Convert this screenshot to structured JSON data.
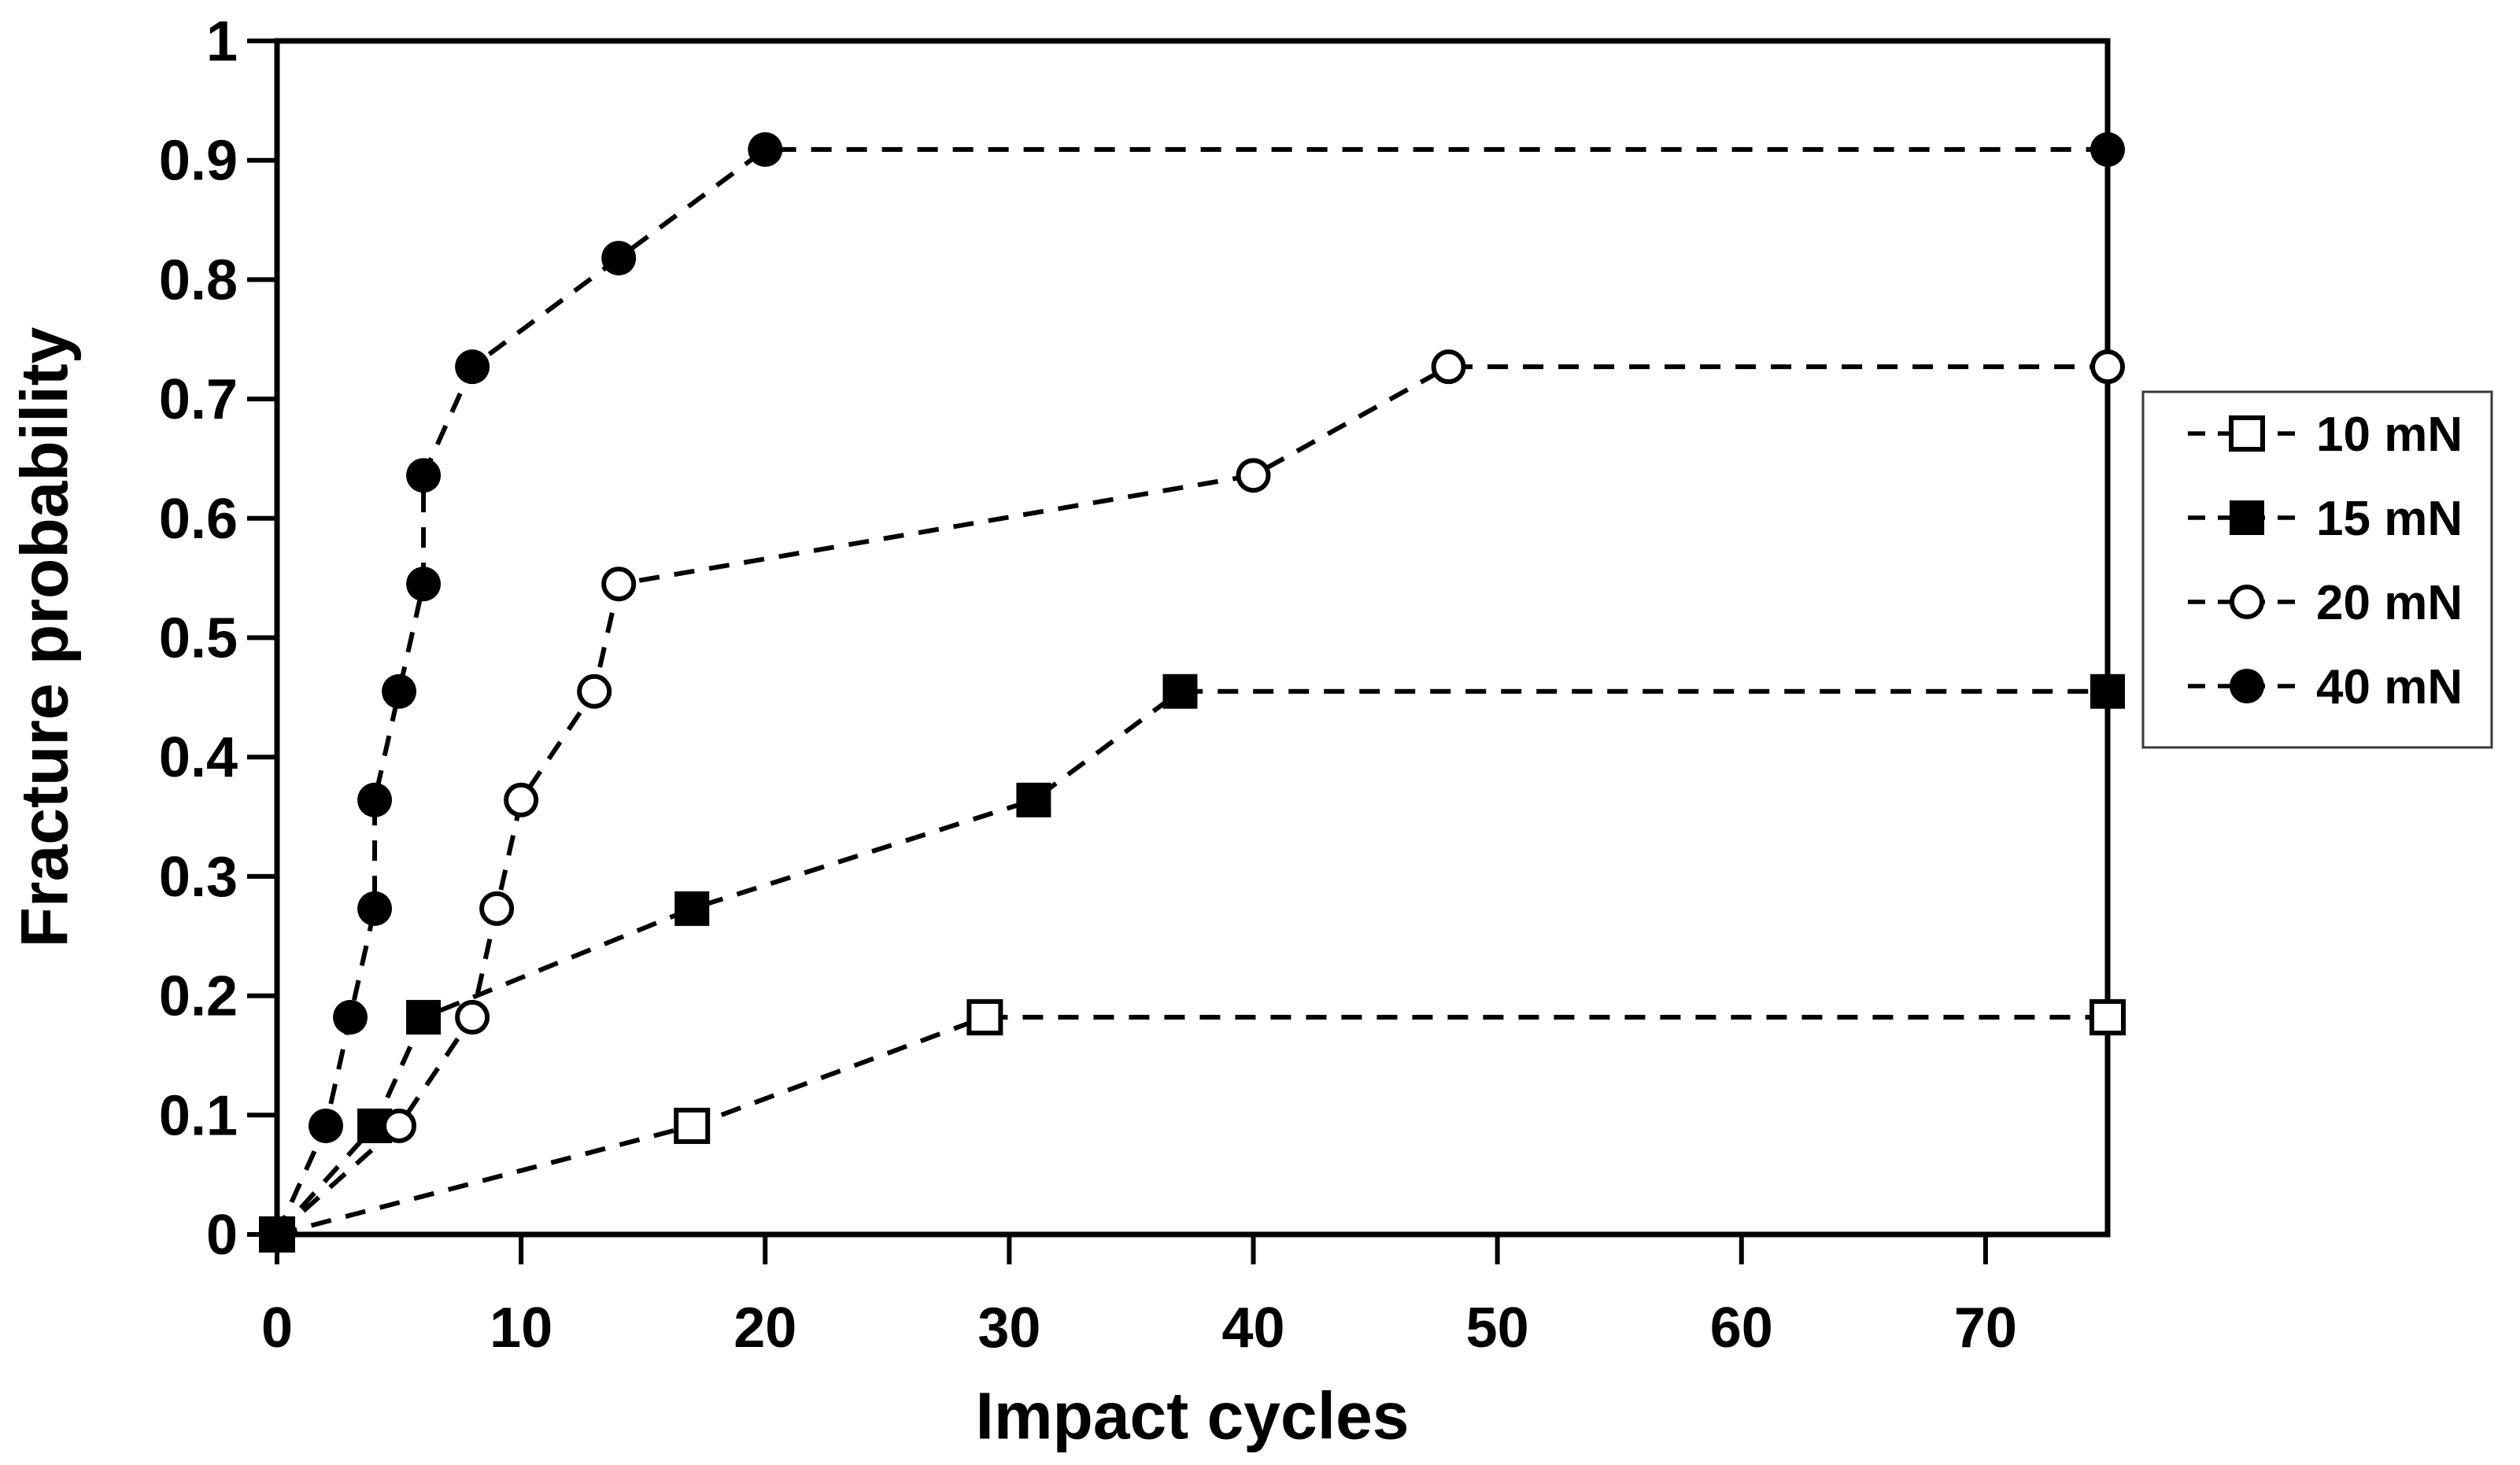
{
  "figure": {
    "background_color": "#ffffff",
    "line_color": "#000000",
    "text_color": "#000000"
  },
  "chart_data": {
    "type": "line",
    "title": "",
    "xlabel": "Impact cycles",
    "ylabel": "Fracture probability",
    "xlim": [
      0,
      75
    ],
    "ylim": [
      0,
      1
    ],
    "xticks": [
      0,
      10,
      20,
      30,
      40,
      50,
      60,
      70
    ],
    "xtick_labels": [
      "0",
      "10",
      "20",
      "30",
      "40",
      "50",
      "60",
      "70"
    ],
    "yticks": [
      0,
      0.1,
      0.2,
      0.3,
      0.4,
      0.5,
      0.6,
      0.7,
      0.8,
      0.9,
      1
    ],
    "ytick_labels": [
      "0",
      "0.1",
      "0.2",
      "0.3",
      "0.4",
      "0.5",
      "0.6",
      "0.7",
      "0.8",
      "0.9",
      "1"
    ],
    "grid": false,
    "line_style": "dashed",
    "legend_position": "right-outside",
    "legend_border_color": "#3a3a3a",
    "series": [
      {
        "name": "10 mN",
        "marker": "open-square",
        "points": [
          [
            0,
            0
          ],
          [
            17,
            0.091
          ],
          [
            29,
            0.182
          ],
          [
            75,
            0.182
          ]
        ]
      },
      {
        "name": "15 mN",
        "marker": "filled-square",
        "points": [
          [
            0,
            0
          ],
          [
            4,
            0.091
          ],
          [
            6,
            0.182
          ],
          [
            17,
            0.273
          ],
          [
            31,
            0.364
          ],
          [
            37,
            0.455
          ],
          [
            75,
            0.455
          ]
        ]
      },
      {
        "name": "20 mN",
        "marker": "open-circle",
        "points": [
          [
            0,
            0
          ],
          [
            5,
            0.091
          ],
          [
            8,
            0.182
          ],
          [
            9,
            0.273
          ],
          [
            10,
            0.364
          ],
          [
            13,
            0.455
          ],
          [
            14,
            0.545
          ],
          [
            40,
            0.636
          ],
          [
            48,
            0.727
          ],
          [
            75,
            0.727
          ]
        ]
      },
      {
        "name": "40 mN",
        "marker": "filled-circle",
        "points": [
          [
            0,
            0
          ],
          [
            2,
            0.091
          ],
          [
            3,
            0.182
          ],
          [
            4,
            0.273
          ],
          [
            4,
            0.364
          ],
          [
            5,
            0.455
          ],
          [
            6,
            0.545
          ],
          [
            6,
            0.636
          ],
          [
            8,
            0.727
          ],
          [
            14,
            0.818
          ],
          [
            20,
            0.909
          ],
          [
            75,
            0.909
          ]
        ]
      }
    ]
  }
}
